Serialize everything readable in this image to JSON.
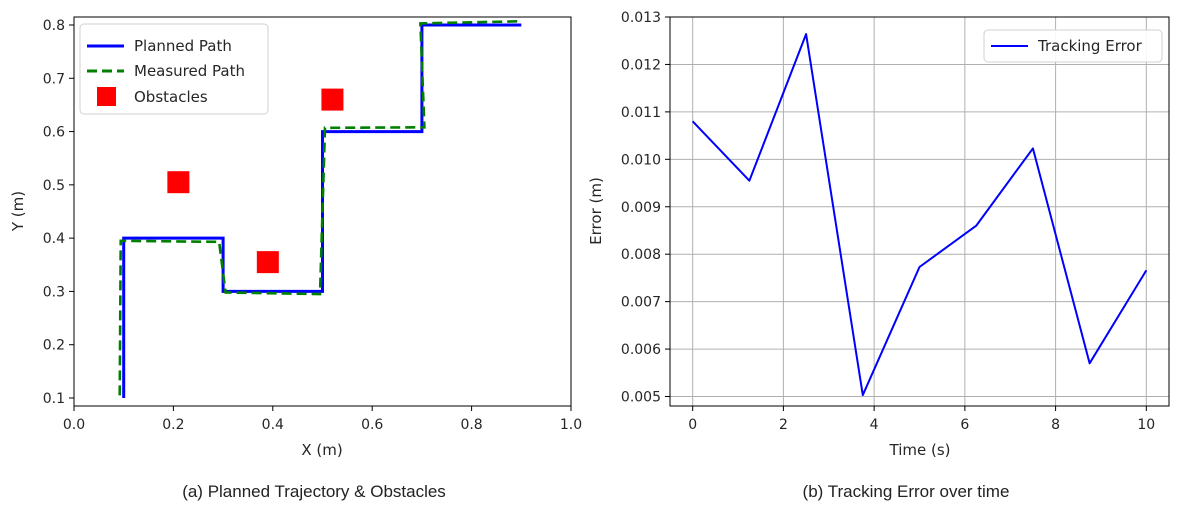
{
  "chart_data": [
    {
      "type": "line",
      "xlabel": "X (m)",
      "ylabel": "Y (m)",
      "xlim": [
        0.0,
        1.0
      ],
      "ylim": [
        0.085,
        0.815
      ],
      "xticks": [
        "0.0",
        "0.2",
        "0.4",
        "0.6",
        "0.8",
        "1.0"
      ],
      "yticks": [
        "0.1",
        "0.2",
        "0.3",
        "0.4",
        "0.5",
        "0.6",
        "0.7",
        "0.8"
      ],
      "grid": false,
      "legend_position": "top-left",
      "series": [
        {
          "name": "Planned Path",
          "style": "solid",
          "color": "#0000ff",
          "x": [
            0.1,
            0.1,
            0.3,
            0.3,
            0.5,
            0.5,
            0.7,
            0.7,
            0.9
          ],
          "y": [
            0.1,
            0.4,
            0.4,
            0.3,
            0.3,
            0.6,
            0.6,
            0.8,
            0.8
          ]
        },
        {
          "name": "Measured Path",
          "style": "dashed",
          "color": "#008000",
          "x": [
            0.092,
            0.094,
            0.292,
            0.305,
            0.495,
            0.505,
            0.705,
            0.697,
            0.9
          ],
          "y": [
            0.105,
            0.395,
            0.393,
            0.298,
            0.295,
            0.607,
            0.608,
            0.803,
            0.807
          ]
        },
        {
          "name": "Obstacles",
          "type": "scatter",
          "marker": "square",
          "color": "#ff0000",
          "x": [
            0.21,
            0.39,
            0.52
          ],
          "y": [
            0.505,
            0.355,
            0.66
          ]
        }
      ],
      "caption": "(a) Planned Trajectory & Obstacles"
    },
    {
      "type": "line",
      "xlabel": "Time (s)",
      "ylabel": "Error (m)",
      "xlim": [
        -0.5,
        10.5
      ],
      "ylim": [
        0.0048,
        0.013
      ],
      "xticks": [
        "0",
        "2",
        "4",
        "6",
        "8",
        "10"
      ],
      "yticks": [
        "0.005",
        "0.006",
        "0.007",
        "0.008",
        "0.009",
        "0.010",
        "0.011",
        "0.012",
        "0.013"
      ],
      "grid": true,
      "legend_position": "top-right",
      "series": [
        {
          "name": "Tracking Error",
          "color": "#0000ff",
          "x": [
            0,
            1.25,
            2.5,
            3.75,
            5,
            6.25,
            7.5,
            8.75,
            10
          ],
          "y": [
            0.0108,
            0.00955,
            0.01264,
            0.00503,
            0.00773,
            0.0086,
            0.01023,
            0.0057,
            0.00766
          ]
        }
      ],
      "caption": "(b) Tracking Error over time"
    }
  ]
}
